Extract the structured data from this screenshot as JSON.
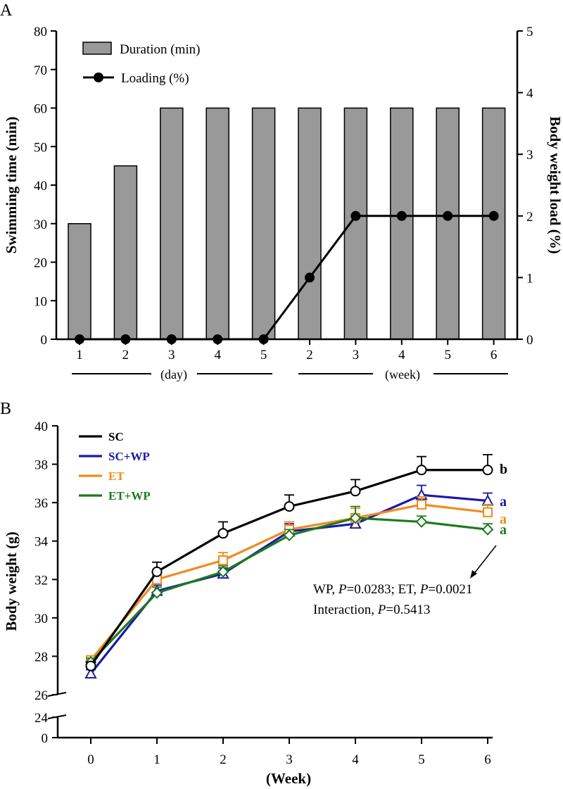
{
  "colors": {
    "bar_fill": "#999999",
    "sc": "#000000",
    "sc_wp": "#1a1aa8",
    "et": "#f28a1e",
    "et_wp": "#1e7a1e"
  },
  "chart_data": [
    {
      "panel_label": "A",
      "type": "bar+line",
      "categories": [
        "1",
        "2",
        "3",
        "4",
        "5",
        "2",
        "3",
        "4",
        "5",
        "6"
      ],
      "group_labels": [
        "(day)",
        "(week)"
      ],
      "series": [
        {
          "name": "Duration (min)",
          "type": "bar",
          "axis": "left",
          "values": [
            30,
            45,
            60,
            60,
            60,
            60,
            60,
            60,
            60,
            60
          ]
        },
        {
          "name": "Loading (%)",
          "type": "line",
          "axis": "right",
          "values": [
            0,
            0,
            0,
            0,
            0,
            1,
            2,
            2,
            2,
            2
          ]
        }
      ],
      "ylabel": "Swimming time (min)",
      "y2label": "Body weight load (%)",
      "ylim": [
        0,
        80
      ],
      "y2lim": [
        0,
        5
      ],
      "yticks": [
        "0",
        "10",
        "20",
        "30",
        "40",
        "50",
        "60",
        "70",
        "80"
      ],
      "y2ticks": [
        "0",
        "1",
        "2",
        "3",
        "4",
        "5"
      ],
      "legend": [
        "Duration (min)",
        "Loading (%)"
      ],
      "legend_position": "top-left"
    },
    {
      "panel_label": "B",
      "type": "line",
      "x": [
        0,
        1,
        2,
        3,
        4,
        5,
        6
      ],
      "xticks": [
        "0",
        "1",
        "2",
        "3",
        "4",
        "5",
        "6"
      ],
      "xlabel": "(Week)",
      "ylabel": "Body weight (g)",
      "ylim": [
        26,
        40
      ],
      "yticks": [
        "26",
        "28",
        "30",
        "32",
        "34",
        "36",
        "38",
        "40"
      ],
      "broken_axis_ticks": [
        "24",
        "0"
      ],
      "series": [
        {
          "name": "SC",
          "marker": "circle",
          "values": [
            27.5,
            32.4,
            34.4,
            35.8,
            36.6,
            37.7,
            37.7
          ],
          "errors": [
            0.2,
            0.5,
            0.6,
            0.6,
            0.6,
            0.7,
            0.8
          ],
          "letter": "b"
        },
        {
          "name": "SC+WP",
          "marker": "triangle",
          "values": [
            27.1,
            31.4,
            32.3,
            34.5,
            34.9,
            36.4,
            36.1
          ],
          "errors": [
            0.2,
            0.3,
            0.3,
            0.4,
            0.5,
            0.5,
            0.4
          ],
          "letter": "a"
        },
        {
          "name": "ET",
          "marker": "square",
          "values": [
            27.8,
            32.0,
            33.0,
            34.6,
            35.2,
            35.9,
            35.5
          ],
          "errors": [
            0.2,
            0.4,
            0.4,
            0.4,
            0.5,
            0.4,
            0.4
          ],
          "letter": "a"
        },
        {
          "name": "ET+WP",
          "marker": "diamond",
          "values": [
            27.7,
            31.3,
            32.4,
            34.3,
            35.2,
            35.0,
            34.6
          ],
          "errors": [
            0.2,
            0.3,
            0.3,
            0.3,
            0.6,
            0.3,
            0.3
          ],
          "letter": "a"
        }
      ],
      "annotation": {
        "line1": {
          "a": "WP, ",
          "p1": "P",
          "b": "=0.0283; ET, ",
          "p2": "P",
          "c": "=0.0021"
        },
        "line2": {
          "a": "Interaction, ",
          "p": "P",
          "b": "=0.5413"
        }
      },
      "legend_position": "top-left"
    }
  ]
}
